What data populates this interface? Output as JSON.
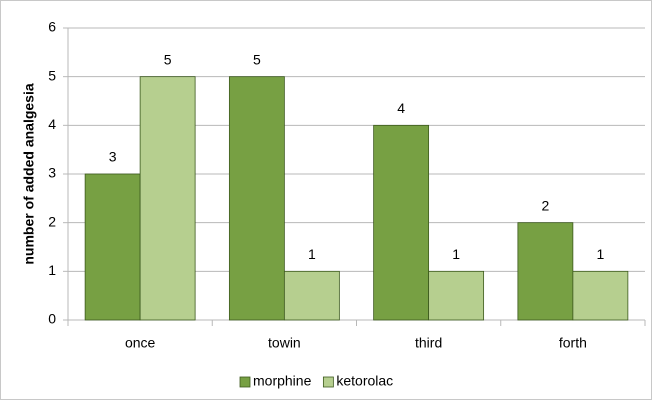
{
  "chart_data": {
    "type": "bar",
    "ylabel": "number of added analgesia",
    "categories": [
      "once",
      "towin",
      "third",
      "forth"
    ],
    "series": [
      {
        "name": "morphine",
        "color": "#77a043",
        "values": [
          3,
          5,
          4,
          2
        ]
      },
      {
        "name": "ketorolac",
        "color": "#b6cf8f",
        "values": [
          5,
          1,
          1,
          1
        ]
      }
    ],
    "ylim": [
      0,
      6
    ],
    "yticks": [
      0,
      1,
      2,
      3,
      4,
      5,
      6
    ],
    "grid": true,
    "legend": "bottom"
  }
}
